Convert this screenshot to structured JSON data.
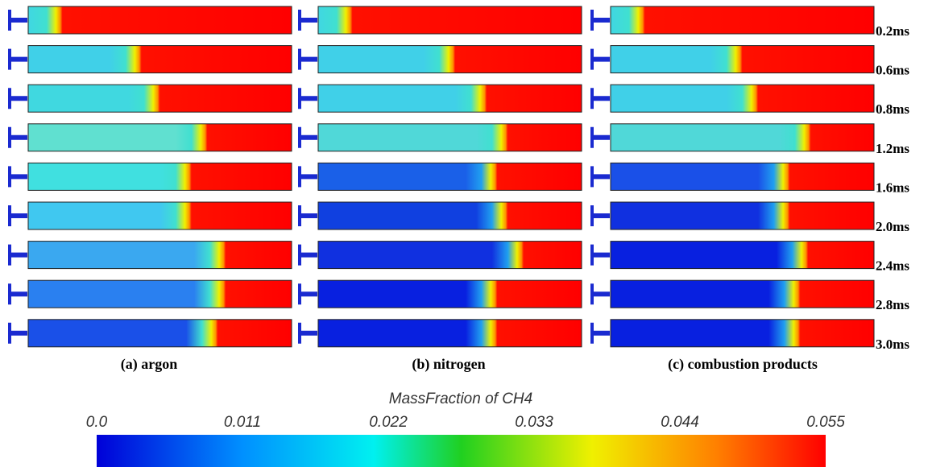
{
  "times": [
    "0.2ms",
    "0.6ms",
    "0.8ms",
    "1.2ms",
    "1.6ms",
    "2.0ms",
    "2.4ms",
    "2.8ms",
    "3.0ms"
  ],
  "captions": [
    "(a) argon",
    "(b) nitrogen",
    "(c) combustion products"
  ],
  "colorbar": {
    "title": "MassFraction of CH4",
    "ticks": [
      {
        "value": 0,
        "label": "0.0"
      },
      0.011,
      0.022,
      0.033,
      0.044,
      0.055
    ]
  }
}
